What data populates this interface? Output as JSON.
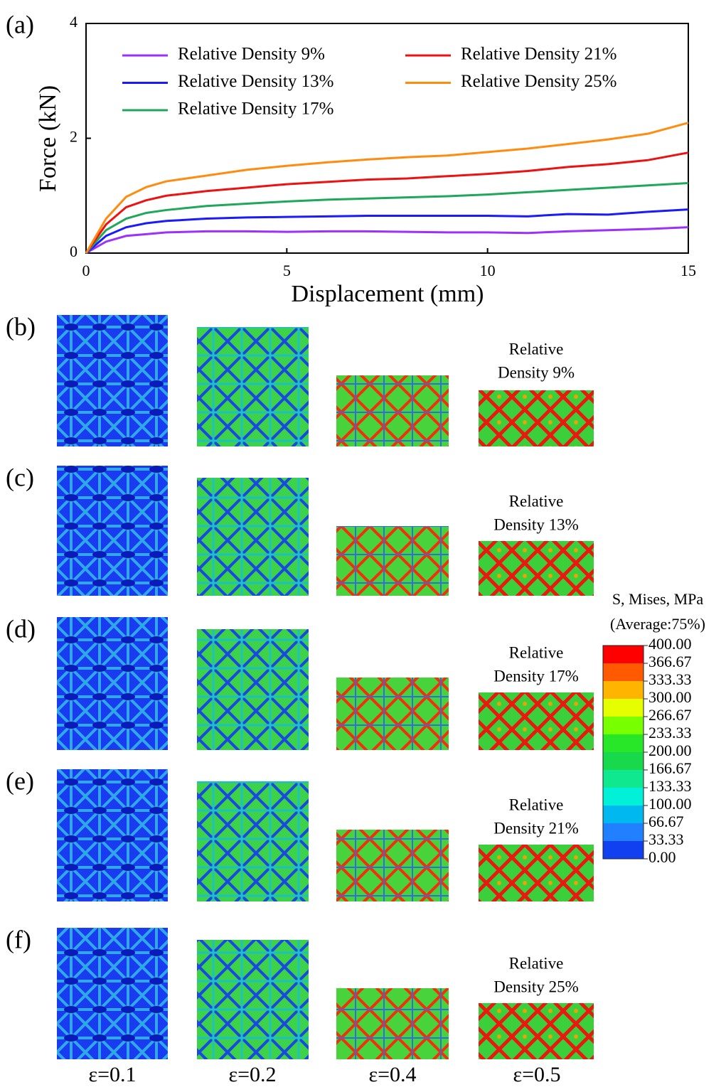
{
  "chart_data": {
    "type": "line",
    "label": "(a)",
    "x_label": "Displacement (mm)",
    "y_label": "Force (kN)",
    "x": [
      0,
      0.5,
      1,
      1.5,
      2,
      3,
      4,
      5,
      6,
      7,
      8,
      9,
      10,
      11,
      12,
      13,
      14,
      15
    ],
    "series": [
      {
        "name": "Relative Density 9%",
        "color": "#9b30ff",
        "values": [
          0,
          0.2,
          0.3,
          0.33,
          0.36,
          0.38,
          0.38,
          0.37,
          0.38,
          0.38,
          0.37,
          0.36,
          0.36,
          0.35,
          0.38,
          0.4,
          0.42,
          0.45
        ]
      },
      {
        "name": "Relative Density 13%",
        "color": "#1a1aff",
        "values": [
          0,
          0.3,
          0.45,
          0.52,
          0.56,
          0.6,
          0.62,
          0.63,
          0.64,
          0.65,
          0.65,
          0.65,
          0.65,
          0.64,
          0.68,
          0.67,
          0.72,
          0.76
        ]
      },
      {
        "name": "Relative Density 17%",
        "color": "#1fa75a",
        "values": [
          0,
          0.4,
          0.6,
          0.7,
          0.75,
          0.82,
          0.86,
          0.9,
          0.93,
          0.95,
          0.97,
          0.99,
          1.02,
          1.06,
          1.1,
          1.14,
          1.18,
          1.22
        ]
      },
      {
        "name": "Relative Density 21%",
        "color": "#ee1111",
        "values": [
          0,
          0.5,
          0.8,
          0.92,
          1.0,
          1.08,
          1.14,
          1.2,
          1.24,
          1.28,
          1.3,
          1.34,
          1.38,
          1.43,
          1.5,
          1.55,
          1.62,
          1.75
        ]
      },
      {
        "name": "Relative Density 25%",
        "color": "#ff8c10",
        "values": [
          0,
          0.6,
          0.98,
          1.15,
          1.25,
          1.35,
          1.45,
          1.52,
          1.58,
          1.63,
          1.67,
          1.7,
          1.76,
          1.82,
          1.9,
          1.98,
          2.08,
          2.27
        ]
      }
    ],
    "xlim": [
      0,
      15
    ],
    "xticks": [
      0,
      5,
      10,
      15
    ],
    "ylim": [
      0,
      4
    ],
    "yticks": [
      0,
      2,
      4
    ],
    "legend": "upper left",
    "grid": false
  },
  "panels": [
    {
      "label": "(b)",
      "density": [
        "Relative",
        "Density 9%"
      ]
    },
    {
      "label": "(c)",
      "density": [
        "Relative",
        "Density 13%"
      ]
    },
    {
      "label": "(d)",
      "density": [
        "Relative",
        "Density 17%"
      ]
    },
    {
      "label": "(e)",
      "density": [
        "Relative",
        "Density 21%"
      ]
    },
    {
      "label": "(f)",
      "density": [
        "Relative",
        "Density 25%"
      ]
    }
  ],
  "colorbar": {
    "title": [
      "S, Mises, MPa",
      "(Average:75%)"
    ],
    "ticks": [
      {
        "value": 400,
        "label": "400.00"
      },
      {
        "value": 366.67,
        "label": "366.67"
      },
      {
        "value": 333.33,
        "label": "333.33"
      },
      {
        "value": 300,
        "label": "300.00"
      },
      {
        "value": 266.67,
        "label": "266.67"
      },
      {
        "value": 233.33,
        "label": "233.33"
      },
      {
        "value": 200,
        "label": "200.00"
      },
      {
        "value": 166.67,
        "label": "166.67"
      },
      {
        "value": 133.33,
        "label": "133.33"
      },
      {
        "value": 100,
        "label": "100.00"
      },
      {
        "value": 66.67,
        "label": "66.67"
      },
      {
        "value": 33.33,
        "label": "33.33"
      },
      {
        "value": 0,
        "label": "0.00"
      }
    ],
    "colors": [
      "#ff0000",
      "#ff5a00",
      "#ffb400",
      "#e6ff00",
      "#78ff00",
      "#28e628",
      "#18d84c",
      "#10e890",
      "#00f0d8",
      "#00b8f0",
      "#2080ff",
      "#1040f0"
    ]
  },
  "strains": [
    "ε=0.1",
    "ε=0.2",
    "ε=0.4",
    "ε=0.5"
  ]
}
